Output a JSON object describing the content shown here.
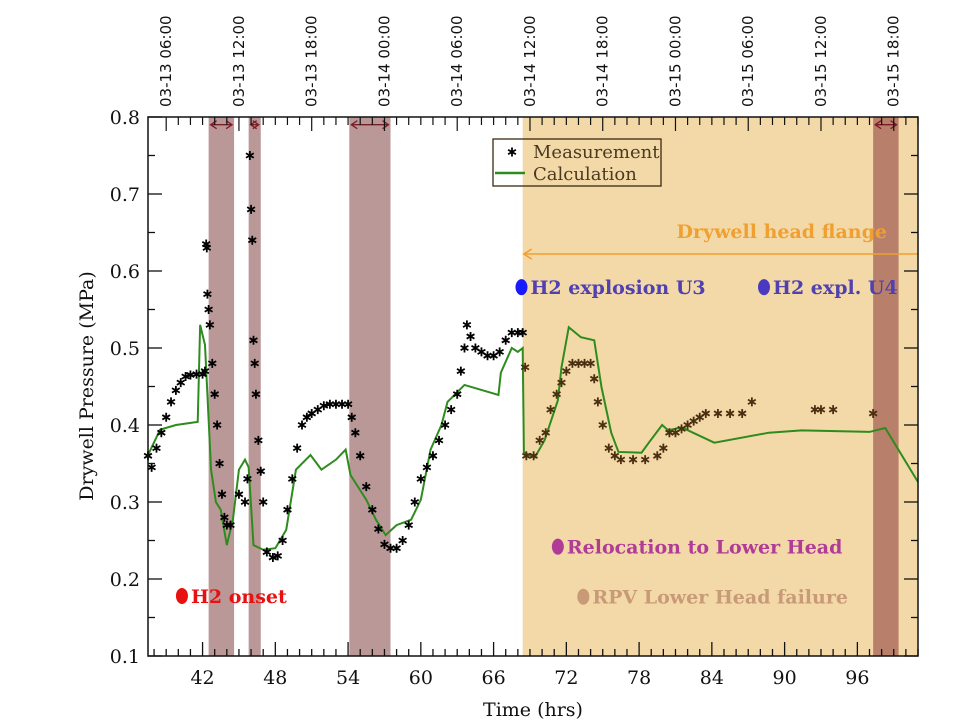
{
  "chart_data": {
    "type": "scatter+line",
    "xlabel": "Time (hrs)",
    "ylabel": "Drywell Pressure (MPa)",
    "xlim": [
      37.5,
      101
    ],
    "ylim": [
      0.1,
      0.8
    ],
    "x_ticks": [
      42,
      48,
      54,
      60,
      66,
      72,
      78,
      84,
      90,
      96
    ],
    "y_ticks": [
      0.1,
      0.2,
      0.3,
      0.4,
      0.5,
      0.6,
      0.7,
      0.8
    ],
    "top_axis": {
      "ticks": [
        {
          "x": 39.0,
          "label": "03-13 06:00"
        },
        {
          "x": 45.0,
          "label": "03-13 12:00"
        },
        {
          "x": 51.0,
          "label": "03-13 18:00"
        },
        {
          "x": 57.0,
          "label": "03-14 00:00"
        },
        {
          "x": 63.0,
          "label": "03-14 06:00"
        },
        {
          "x": 69.0,
          "label": "03-14 12:00"
        },
        {
          "x": 75.0,
          "label": "03-14 18:00"
        },
        {
          "x": 81.0,
          "label": "03-15 00:00"
        },
        {
          "x": 87.0,
          "label": "03-15 06:00"
        },
        {
          "x": 93.0,
          "label": "03-15 12:00"
        },
        {
          "x": 99.0,
          "label": "03-15 18:00"
        }
      ]
    },
    "grid": false,
    "legend": {
      "placement": "top-center",
      "entries": [
        "Measurement",
        "Calculation"
      ]
    },
    "shaded_bands": [
      {
        "x": [
          42.5,
          44.6
        ],
        "color": "#bb9898"
      },
      {
        "x": [
          45.8,
          46.8
        ],
        "color": "#bb9898"
      },
      {
        "x": [
          54.1,
          57.5
        ],
        "color": "#bb9898"
      },
      {
        "x": [
          68.4,
          101
        ],
        "color": "#f3d9a8"
      },
      {
        "x": [
          97.3,
          99.4
        ],
        "color": "#b8806a"
      }
    ],
    "series": [
      {
        "name": "Measurement",
        "marker": "asterisk",
        "color": "#000000",
        "points": [
          [
            37.5,
            0.36
          ],
          [
            37.8,
            0.345
          ],
          [
            38.2,
            0.37
          ],
          [
            38.6,
            0.39
          ],
          [
            39.0,
            0.41
          ],
          [
            39.4,
            0.43
          ],
          [
            39.8,
            0.445
          ],
          [
            40.2,
            0.455
          ],
          [
            40.6,
            0.463
          ],
          [
            41.0,
            0.465
          ],
          [
            41.5,
            0.466
          ],
          [
            42.0,
            0.466
          ],
          [
            42.2,
            0.47
          ],
          [
            42.3,
            0.635
          ],
          [
            42.35,
            0.63
          ],
          [
            42.4,
            0.57
          ],
          [
            42.5,
            0.55
          ],
          [
            42.6,
            0.53
          ],
          [
            42.8,
            0.48
          ],
          [
            43.0,
            0.44
          ],
          [
            43.2,
            0.4
          ],
          [
            43.4,
            0.35
          ],
          [
            43.6,
            0.31
          ],
          [
            43.8,
            0.28
          ],
          [
            44.0,
            0.27
          ],
          [
            44.3,
            0.27
          ],
          [
            45.0,
            0.31
          ],
          [
            45.5,
            0.3
          ],
          [
            45.7,
            0.33
          ],
          [
            45.9,
            0.75
          ],
          [
            46.0,
            0.68
          ],
          [
            46.1,
            0.64
          ],
          [
            46.2,
            0.51
          ],
          [
            46.3,
            0.48
          ],
          [
            46.4,
            0.44
          ],
          [
            46.6,
            0.38
          ],
          [
            46.8,
            0.34
          ],
          [
            47.0,
            0.3
          ],
          [
            47.3,
            0.235
          ],
          [
            47.8,
            0.228
          ],
          [
            48.2,
            0.23
          ],
          [
            48.6,
            0.25
          ],
          [
            49.0,
            0.29
          ],
          [
            49.4,
            0.33
          ],
          [
            49.8,
            0.37
          ],
          [
            50.2,
            0.4
          ],
          [
            50.6,
            0.41
          ],
          [
            51.0,
            0.415
          ],
          [
            51.5,
            0.42
          ],
          [
            52.0,
            0.425
          ],
          [
            52.5,
            0.427
          ],
          [
            53.0,
            0.427
          ],
          [
            53.5,
            0.427
          ],
          [
            54.0,
            0.427
          ],
          [
            54.3,
            0.41
          ],
          [
            54.6,
            0.39
          ],
          [
            55.0,
            0.36
          ],
          [
            55.5,
            0.32
          ],
          [
            56.0,
            0.29
          ],
          [
            56.5,
            0.265
          ],
          [
            57.0,
            0.245
          ],
          [
            57.5,
            0.24
          ],
          [
            58.0,
            0.24
          ],
          [
            58.5,
            0.25
          ],
          [
            59.0,
            0.27
          ],
          [
            59.5,
            0.3
          ],
          [
            60.0,
            0.33
          ],
          [
            60.5,
            0.345
          ],
          [
            61.0,
            0.36
          ],
          [
            61.5,
            0.38
          ],
          [
            62.0,
            0.4
          ],
          [
            62.5,
            0.42
          ],
          [
            63.0,
            0.44
          ],
          [
            63.3,
            0.47
          ],
          [
            63.6,
            0.5
          ],
          [
            63.8,
            0.53
          ],
          [
            64.1,
            0.515
          ],
          [
            64.5,
            0.5
          ],
          [
            65.0,
            0.495
          ],
          [
            65.5,
            0.49
          ],
          [
            66.0,
            0.49
          ],
          [
            66.5,
            0.495
          ],
          [
            67.0,
            0.51
          ],
          [
            67.5,
            0.52
          ],
          [
            68.0,
            0.52
          ],
          [
            68.4,
            0.52
          ],
          [
            68.6,
            0.475
          ],
          [
            68.7,
            0.36
          ],
          [
            69.3,
            0.36
          ],
          [
            69.8,
            0.38
          ],
          [
            70.3,
            0.39
          ],
          [
            70.7,
            0.42
          ],
          [
            71.2,
            0.44
          ],
          [
            71.6,
            0.455
          ],
          [
            72.0,
            0.47
          ],
          [
            72.5,
            0.48
          ],
          [
            73.0,
            0.48
          ],
          [
            73.5,
            0.48
          ],
          [
            74.0,
            0.48
          ],
          [
            74.3,
            0.46
          ],
          [
            74.6,
            0.43
          ],
          [
            75.0,
            0.4
          ],
          [
            75.5,
            0.37
          ],
          [
            76.0,
            0.36
          ],
          [
            76.5,
            0.355
          ],
          [
            77.5,
            0.355
          ],
          [
            78.5,
            0.355
          ],
          [
            79.5,
            0.36
          ],
          [
            80.0,
            0.37
          ],
          [
            80.5,
            0.39
          ],
          [
            81.0,
            0.39
          ],
          [
            81.5,
            0.395
          ],
          [
            82.0,
            0.4
          ],
          [
            82.5,
            0.405
          ],
          [
            83.0,
            0.41
          ],
          [
            83.5,
            0.415
          ],
          [
            84.5,
            0.415
          ],
          [
            85.5,
            0.415
          ],
          [
            86.5,
            0.415
          ],
          [
            87.3,
            0.43
          ],
          [
            92.5,
            0.42
          ],
          [
            93.0,
            0.42
          ],
          [
            94.0,
            0.42
          ],
          [
            97.3,
            0.415
          ]
        ]
      },
      {
        "name": "Calculation",
        "marker": "line",
        "color": "#2e8b1e",
        "points": [
          [
            37.5,
            0.361
          ],
          [
            38.5,
            0.394
          ],
          [
            39.8,
            0.4
          ],
          [
            41.6,
            0.404
          ],
          [
            41.8,
            0.53
          ],
          [
            42.2,
            0.504
          ],
          [
            42.7,
            0.342
          ],
          [
            43.1,
            0.3
          ],
          [
            43.5,
            0.29
          ],
          [
            44.0,
            0.244
          ],
          [
            44.5,
            0.277
          ],
          [
            45.0,
            0.342
          ],
          [
            45.5,
            0.355
          ],
          [
            45.8,
            0.345
          ],
          [
            46.2,
            0.244
          ],
          [
            47.0,
            0.238
          ],
          [
            48.0,
            0.24
          ],
          [
            48.9,
            0.264
          ],
          [
            49.7,
            0.342
          ],
          [
            50.9,
            0.361
          ],
          [
            51.8,
            0.342
          ],
          [
            53.0,
            0.355
          ],
          [
            53.8,
            0.368
          ],
          [
            54.2,
            0.335
          ],
          [
            55.5,
            0.303
          ],
          [
            56.3,
            0.277
          ],
          [
            57.1,
            0.257
          ],
          [
            58.0,
            0.27
          ],
          [
            59.2,
            0.277
          ],
          [
            60.0,
            0.303
          ],
          [
            60.8,
            0.368
          ],
          [
            61.7,
            0.4
          ],
          [
            62.2,
            0.43
          ],
          [
            63.6,
            0.452
          ],
          [
            66.4,
            0.439
          ],
          [
            66.6,
            0.468
          ],
          [
            67.5,
            0.5
          ],
          [
            68.0,
            0.495
          ],
          [
            68.4,
            0.5
          ],
          [
            68.5,
            0.364
          ],
          [
            69.4,
            0.358
          ],
          [
            70.2,
            0.38
          ],
          [
            71.3,
            0.432
          ],
          [
            71.6,
            0.475
          ],
          [
            72.2,
            0.527
          ],
          [
            73.2,
            0.514
          ],
          [
            74.3,
            0.51
          ],
          [
            74.9,
            0.449
          ],
          [
            75.7,
            0.39
          ],
          [
            76.3,
            0.365
          ],
          [
            78.2,
            0.364
          ],
          [
            78.8,
            0.377
          ],
          [
            79.9,
            0.4
          ],
          [
            80.4,
            0.393
          ],
          [
            81.5,
            0.397
          ],
          [
            84.2,
            0.377
          ],
          [
            88.7,
            0.39
          ],
          [
            91.4,
            0.393
          ],
          [
            97.0,
            0.391
          ],
          [
            98.3,
            0.396
          ],
          [
            101.0,
            0.326
          ]
        ]
      }
    ],
    "annotations": [
      {
        "text": "H2 onset",
        "x": 40.3,
        "y": 0.178,
        "color": "#e81010",
        "marker": "dot"
      },
      {
        "text": "H2 explosion U3",
        "x": 68.3,
        "y": 0.579,
        "color": "#5040b0",
        "marker_color": "#1a1aff",
        "marker": "dot"
      },
      {
        "text": "H2 expl. U4",
        "x": 88.3,
        "y": 0.579,
        "color": "#5040b0",
        "marker_color": "#4a3ac0",
        "marker": "dot"
      },
      {
        "text": "Relocation to Lower Head",
        "x": 71.3,
        "y": 0.242,
        "color": "#b03c98",
        "marker": "dot"
      },
      {
        "text": "RPV Lower Head failure",
        "x": 73.4,
        "y": 0.177,
        "color": "#c89a78",
        "marker": "dot"
      },
      {
        "text": "Drywell head flange",
        "x": 100,
        "y": 0.65,
        "color": "#f0a030",
        "marker": "arrow-left",
        "arrow_from": 101,
        "arrow_to": 68.4,
        "arrow_y": 0.622
      }
    ],
    "band_arrows": [
      {
        "x": [
          42.5,
          44.6
        ],
        "y": 0.79
      },
      {
        "x": [
          45.8,
          46.8
        ],
        "y": 0.79
      },
      {
        "x": [
          54.1,
          57.5
        ],
        "y": 0.79
      },
      {
        "x": [
          97.3,
          99.4
        ],
        "y": 0.79
      }
    ]
  }
}
